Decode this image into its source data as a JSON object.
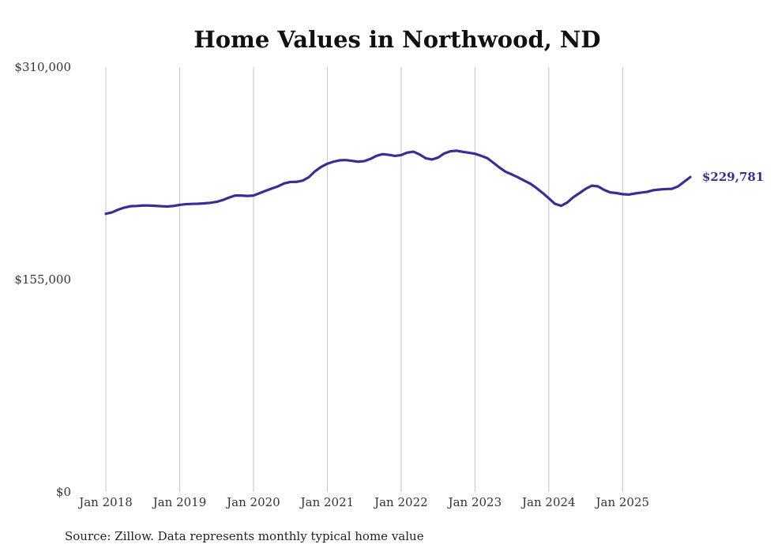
{
  "chart_data": {
    "type": "line",
    "title": "Home Values in Northwood, ND",
    "source": "Source: Zillow. Data represents monthly typical home value",
    "ylim": [
      0,
      310000
    ],
    "yticks": [
      {
        "value": 0,
        "label": "$0"
      },
      {
        "value": 155000,
        "label": "$155,000"
      },
      {
        "value": 310000,
        "label": "$310,000"
      }
    ],
    "xlim": [
      2018.0,
      2025.917
    ],
    "xticks": [
      {
        "value": 2018,
        "label": "Jan 2018"
      },
      {
        "value": 2019,
        "label": "Jan 2019"
      },
      {
        "value": 2020,
        "label": "Jan 2020"
      },
      {
        "value": 2021,
        "label": "Jan 2021"
      },
      {
        "value": 2022,
        "label": "Jan 2022"
      },
      {
        "value": 2023,
        "label": "Jan 2023"
      },
      {
        "value": 2024,
        "label": "Jan 2024"
      },
      {
        "value": 2025,
        "label": "Jan 2025"
      }
    ],
    "grid": "vertical",
    "line_color": "#363095",
    "end_label": "$229,781",
    "series": [
      {
        "name": "Typical home value",
        "x": [
          2018.0,
          2018.083,
          2018.167,
          2018.25,
          2018.333,
          2018.417,
          2018.5,
          2018.583,
          2018.667,
          2018.75,
          2018.833,
          2018.917,
          2019.0,
          2019.083,
          2019.167,
          2019.25,
          2019.333,
          2019.417,
          2019.5,
          2019.583,
          2019.667,
          2019.75,
          2019.833,
          2019.917,
          2020.0,
          2020.083,
          2020.167,
          2020.25,
          2020.333,
          2020.417,
          2020.5,
          2020.583,
          2020.667,
          2020.75,
          2020.833,
          2020.917,
          2021.0,
          2021.083,
          2021.167,
          2021.25,
          2021.333,
          2021.417,
          2021.5,
          2021.583,
          2021.667,
          2021.75,
          2021.833,
          2021.917,
          2022.0,
          2022.083,
          2022.167,
          2022.25,
          2022.333,
          2022.417,
          2022.5,
          2022.583,
          2022.667,
          2022.75,
          2022.833,
          2022.917,
          2023.0,
          2023.083,
          2023.167,
          2023.25,
          2023.333,
          2023.417,
          2023.5,
          2023.583,
          2023.667,
          2023.75,
          2023.833,
          2023.917,
          2024.0,
          2024.083,
          2024.167,
          2024.25,
          2024.333,
          2024.417,
          2024.5,
          2024.583,
          2024.667,
          2024.75,
          2024.833,
          2024.917,
          2025.0,
          2025.083,
          2025.167,
          2025.25,
          2025.333,
          2025.417,
          2025.5,
          2025.583,
          2025.667,
          2025.75,
          2025.833,
          2025.917
        ],
        "values": [
          203000,
          204000,
          206000,
          207500,
          208500,
          208700,
          209000,
          209000,
          208800,
          208500,
          208300,
          208700,
          209500,
          210000,
          210200,
          210300,
          210600,
          211000,
          211700,
          213000,
          214800,
          216300,
          216300,
          216000,
          216300,
          218000,
          219800,
          221500,
          223000,
          225200,
          226200,
          226300,
          227200,
          229700,
          234000,
          237200,
          239500,
          241000,
          242000,
          242200,
          241600,
          241000,
          241400,
          243000,
          245300,
          246500,
          246000,
          245200,
          245800,
          247600,
          248300,
          246300,
          243500,
          242600,
          244000,
          247000,
          248600,
          249000,
          248200,
          247500,
          246800,
          245300,
          243600,
          240200,
          236700,
          233600,
          231700,
          229600,
          227200,
          225000,
          221800,
          218200,
          214300,
          210300,
          208800,
          211200,
          215100,
          218100,
          221200,
          223500,
          223000,
          220400,
          218600,
          218100,
          217300,
          217000,
          217800,
          218400,
          219000,
          220200,
          220700,
          221000,
          221200,
          222900,
          226300,
          229781
        ]
      }
    ]
  }
}
